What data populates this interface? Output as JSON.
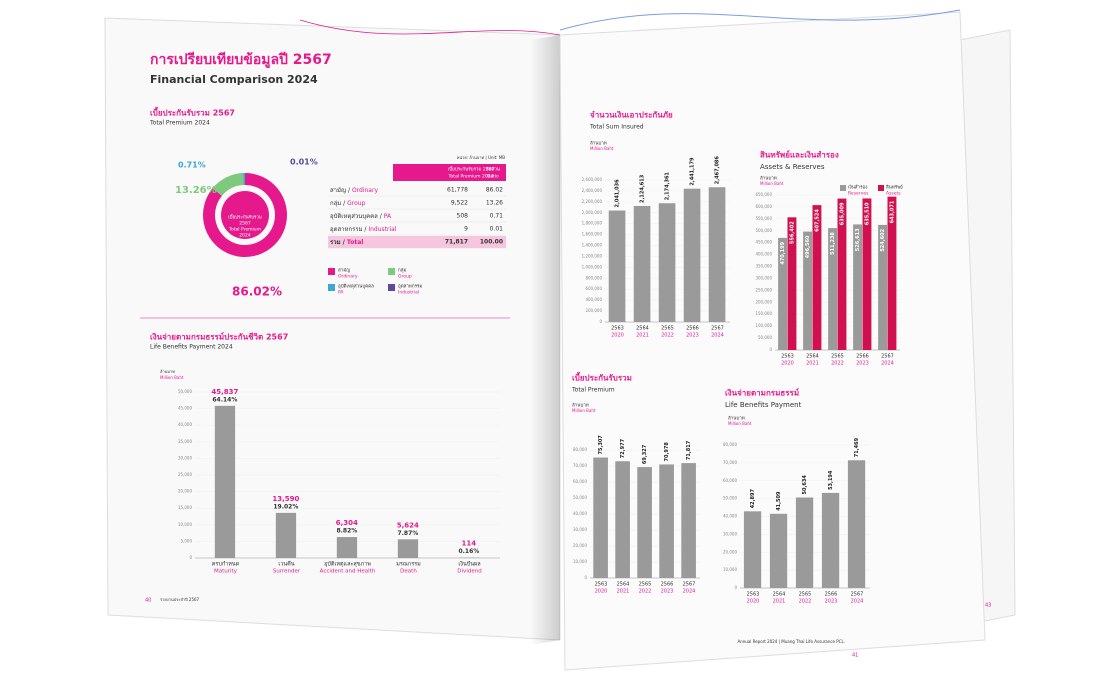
{
  "left_page": {
    "title": "การเปรียบเทียบข้อมูลปี 2567",
    "subtitle": "Financial Comparison 2024",
    "premium": {
      "heading": "เบี้ยประกันรับรวม 2567",
      "heading_en": "Total Premium 2024",
      "donut": {
        "type": "pie",
        "center": [
          "เบี้ยประกันรับรวม",
          "2567",
          "Total Premium",
          "2024"
        ],
        "values": [
          86.02,
          13.26,
          0.71,
          0.01
        ],
        "value_labels": [
          "86.02%",
          "13.26%",
          "0.71%",
          "0.01%"
        ],
        "colors": [
          "#e6198c",
          "#7fc97f",
          "#3aa7d8",
          "#5b4a9e"
        ]
      },
      "unit": "หน่วย: ล้านบาท | Unit: MB",
      "table": {
        "header": [
          "เบี้ยประกันรับรวม 2567",
          "Total Premium 2024",
          "สัดส่วน",
          "Ratio"
        ],
        "rows": [
          [
            "สามัญ / ",
            "Ordinary",
            "61,778",
            "86.02"
          ],
          [
            "กลุ่ม / ",
            "Group",
            "9,522",
            "13.26"
          ],
          [
            "อุบัติเหตุส่วนบุคคล / ",
            "PA",
            "508",
            "0.71"
          ],
          [
            "อุตสาหกรรม / ",
            "Industrial",
            "9",
            "0.01"
          ]
        ],
        "total": [
          "รวม / ",
          "Total",
          "71,817",
          "100.00"
        ]
      },
      "legend": [
        [
          "สามัญ",
          "Ordinary"
        ],
        [
          "กลุ่ม",
          "Group"
        ],
        [
          "อุบัติเหตุส่วนบุคคล",
          "PA"
        ],
        [
          "อุตสาหกรรม",
          "Industrial"
        ]
      ]
    },
    "benefits": {
      "type": "bar",
      "heading": "เงินจ่ายตามกรมธรรม์ประกันชีวิต 2567",
      "heading_en": "Life Benefits Payment 2024",
      "unit": [
        "ล้านบาท",
        "Million Baht"
      ],
      "categories": [
        [
          "ครบกำหนด",
          "Maturity"
        ],
        [
          "เวนคืน",
          "Surrender"
        ],
        [
          "อุบัติเหตุและสุขภาพ",
          "Accident and Health"
        ],
        [
          "มรณกรรม",
          "Death"
        ],
        [
          "เงินปันผล",
          "Dividend"
        ]
      ],
      "values": [
        45837,
        13590,
        6304,
        5624,
        114
      ],
      "value_labels": [
        "45,837",
        "13,590",
        "6,304",
        "5,624",
        "114"
      ],
      "shares": [
        64.14,
        19.02,
        8.82,
        7.87,
        0.16
      ],
      "share_labels": [
        "64.14%",
        "19.02%",
        "8.82%",
        "7.87%",
        "0.16%"
      ],
      "color": "#9a9a9a",
      "ylim": [
        0,
        50000
      ],
      "yticks": [
        0,
        {
          "value": 5000,
          "label": "5,000"
        },
        {
          "value": 10000,
          "label": "10,000"
        },
        {
          "value": 15000,
          "label": "15,000"
        },
        {
          "value": 20000,
          "label": "20,000"
        },
        {
          "value": 25000,
          "label": "25,000"
        },
        {
          "value": 30000,
          "label": "30,000"
        },
        {
          "value": 35000,
          "label": "35,000"
        },
        {
          "value": 40000,
          "label": "40,000"
        },
        {
          "value": 45000,
          "label": "45,000"
        },
        {
          "value": 50000,
          "label": "50,000"
        }
      ]
    },
    "footer": [
      "40",
      "รายงานประจำปี 2567"
    ]
  },
  "right_page": {
    "sum_insured": {
      "type": "bar",
      "heading": "จำนวนเงินเอาประกันภัย",
      "heading_en": "Total Sum Insured",
      "unit": [
        "ล้านบาท",
        "Million Baht"
      ],
      "categories": [
        [
          "2563",
          "2020"
        ],
        [
          "2564",
          "2021"
        ],
        [
          "2565",
          "2022"
        ],
        [
          "2566",
          "2023"
        ],
        [
          "2567",
          "2024"
        ]
      ],
      "values": [
        2041036,
        2124613,
        2174361,
        2441179,
        2467086
      ],
      "value_labels": [
        "2,041,036",
        "2,124,613",
        "2,174,361",
        "2,441,179",
        "2,467,086"
      ],
      "color": "#9a9a9a",
      "ylim": [
        0,
        2600000
      ],
      "yticks": [
        0,
        {
          "value": 200000,
          "label": "200,000"
        },
        {
          "value": 400000,
          "label": "400,000"
        },
        {
          "value": 600000,
          "label": "600,000"
        },
        {
          "value": 800000,
          "label": "800,000"
        },
        {
          "value": 1000000,
          "label": "1,000,000"
        },
        {
          "value": 1200000,
          "label": "1,200,000"
        },
        {
          "value": 1400000,
          "label": "1,400,000"
        },
        {
          "value": 1600000,
          "label": "1,600,000"
        },
        {
          "value": 1800000,
          "label": "1,800,000"
        },
        {
          "value": 2000000,
          "label": "2,000,000"
        },
        {
          "value": 2200000,
          "label": "2,200,000"
        },
        {
          "value": 2400000,
          "label": "2,400,000"
        },
        {
          "value": 2600000,
          "label": "2,600,000"
        }
      ]
    },
    "assets": {
      "type": "bar",
      "heading": "สินทรัพย์และเงินสำรอง",
      "heading_en": "Assets & Reserves",
      "unit": [
        "ล้านบาท",
        "Million Baht"
      ],
      "categories": [
        [
          "2563",
          "2020"
        ],
        [
          "2564",
          "2021"
        ],
        [
          "2565",
          "2022"
        ],
        [
          "2566",
          "2023"
        ],
        [
          "2567",
          "2024"
        ]
      ],
      "series": [
        {
          "name": [
            "เงินสำรอง",
            "Reserves"
          ],
          "color": "#9a9a9a",
          "values": [
            470199,
            496560,
            511238,
            526613,
            524602
          ],
          "value_labels": [
            "470,199",
            "496,560",
            "511,238",
            "526,613",
            "524,602"
          ]
        },
        {
          "name": [
            "สินทรัพย์",
            "Assets"
          ],
          "color": "#d0104f",
          "values": [
            556402,
            607524,
            635009,
            635510,
            643071
          ],
          "value_labels": [
            "556,402",
            "607,524",
            "635,009",
            "635,510",
            "643,071"
          ]
        }
      ],
      "ylim": [
        0,
        650000
      ],
      "yticks": [
        0,
        {
          "value": 50000,
          "label": "50,000"
        },
        {
          "value": 100000,
          "label": "100,000"
        },
        {
          "value": 150000,
          "label": "150,000"
        },
        {
          "value": 200000,
          "label": "200,000"
        },
        {
          "value": 250000,
          "label": "250,000"
        },
        {
          "value": 300000,
          "label": "300,000"
        },
        {
          "value": 350000,
          "label": "350,000"
        },
        {
          "value": 400000,
          "label": "400,000"
        },
        {
          "value": 450000,
          "label": "450,000"
        },
        {
          "value": 500000,
          "label": "500,000"
        },
        {
          "value": 550000,
          "label": "550,000"
        },
        {
          "value": 600000,
          "label": "600,000"
        },
        {
          "value": 650000,
          "label": "650,000"
        }
      ]
    },
    "premium": {
      "type": "bar",
      "heading": "เบี้ยประกันรับรวม",
      "heading_en": "Total Premium",
      "unit": [
        "ล้านบาท",
        "Million Baht"
      ],
      "categories": [
        [
          "2563",
          "2020"
        ],
        [
          "2564",
          "2021"
        ],
        [
          "2565",
          "2022"
        ],
        [
          "2566",
          "2023"
        ],
        [
          "2567",
          "2024"
        ]
      ],
      "values": [
        75307,
        72977,
        69327,
        70978,
        71817
      ],
      "value_labels": [
        "75,307",
        "72,977",
        "69,327",
        "70,978",
        "71,817"
      ],
      "color": "#9a9a9a",
      "ylim": [
        0,
        80000
      ],
      "yticks": [
        0,
        {
          "value": 10000,
          "label": "10,000"
        },
        {
          "value": 20000,
          "label": "20,000"
        },
        {
          "value": 30000,
          "label": "30,000"
        },
        {
          "value": 40000,
          "label": "40,000"
        },
        {
          "value": 50000,
          "label": "50,000"
        },
        {
          "value": 60000,
          "label": "60,000"
        },
        {
          "value": 70000,
          "label": "70,000"
        },
        {
          "value": 80000,
          "label": "80,000"
        }
      ]
    },
    "benefits": {
      "type": "bar",
      "heading": "เงินจ่ายตามกรมธรรม์",
      "heading_en": "Life Benefits Payment",
      "unit": [
        "ล้านบาท",
        "Million Baht"
      ],
      "categories": [
        [
          "2563",
          "2020"
        ],
        [
          "2564",
          "2021"
        ],
        [
          "2565",
          "2022"
        ],
        [
          "2566",
          "2023"
        ],
        [
          "2567",
          "2024"
        ]
      ],
      "values": [
        42897,
        41509,
        50634,
        53194,
        71469
      ],
      "value_labels": [
        "42,897",
        "41,509",
        "50,634",
        "53,194",
        "71,469"
      ],
      "color": "#9a9a9a",
      "ylim": [
        0,
        80000
      ],
      "yticks": [
        0,
        {
          "value": 10000,
          "label": "10,000"
        },
        {
          "value": 20000,
          "label": "20,000"
        },
        {
          "value": 30000,
          "label": "30,000"
        },
        {
          "value": 40000,
          "label": "40,000"
        },
        {
          "value": 50000,
          "label": "50,000"
        },
        {
          "value": 60000,
          "label": "60,000"
        },
        {
          "value": 70000,
          "label": "70,000"
        },
        {
          "value": 80000,
          "label": "80,000"
        }
      ]
    },
    "footer": [
      "41",
      "Annual Report 2024 | Muang Thai Life Assurance PCL."
    ],
    "next_page_number": "43"
  }
}
